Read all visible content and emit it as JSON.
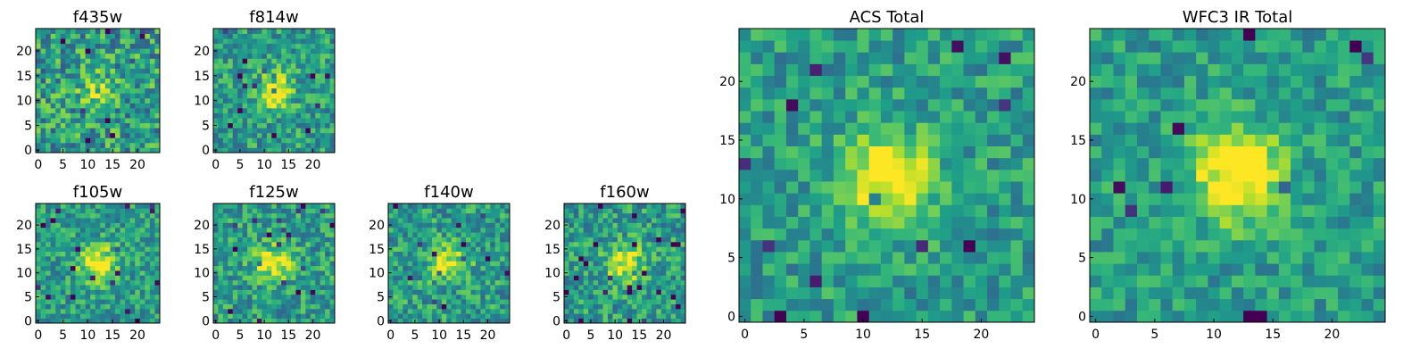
{
  "figure": {
    "colormap": "viridis",
    "grid": false,
    "legend": "none"
  },
  "chart_data": [
    {
      "type": "heatmap",
      "title": "f435w",
      "seed": 11,
      "blob": 0.25,
      "noise": 0.75,
      "grid_size": 25,
      "xlim": [
        0,
        25
      ],
      "ylim": [
        0,
        25
      ],
      "x_ticks": [
        "0",
        "5",
        "10",
        "15",
        "20"
      ],
      "y_ticks": [
        "0",
        "5",
        "10",
        "15",
        "20"
      ]
    },
    {
      "type": "heatmap",
      "title": "f814w",
      "seed": 23,
      "blob": 0.45,
      "noise": 0.6,
      "grid_size": 25,
      "xlim": [
        0,
        25
      ],
      "ylim": [
        0,
        25
      ],
      "x_ticks": [
        "0",
        "5",
        "10",
        "15",
        "20"
      ],
      "y_ticks": [
        "0",
        "5",
        "10",
        "15",
        "20"
      ]
    },
    {
      "type": "heatmap",
      "title": "f105w",
      "seed": 37,
      "blob": 0.5,
      "noise": 0.55,
      "grid_size": 25,
      "xlim": [
        0,
        25
      ],
      "ylim": [
        0,
        25
      ],
      "x_ticks": [
        "0",
        "5",
        "10",
        "15",
        "20"
      ],
      "y_ticks": [
        "0",
        "5",
        "10",
        "15",
        "20"
      ]
    },
    {
      "type": "heatmap",
      "title": "f125w",
      "seed": 41,
      "blob": 0.45,
      "noise": 0.6,
      "grid_size": 25,
      "xlim": [
        0,
        25
      ],
      "ylim": [
        0,
        25
      ],
      "x_ticks": [
        "0",
        "5",
        "10",
        "15",
        "20"
      ],
      "y_ticks": [
        "0",
        "5",
        "10",
        "15",
        "20"
      ]
    },
    {
      "type": "heatmap",
      "title": "f140w",
      "seed": 53,
      "blob": 0.4,
      "noise": 0.6,
      "grid_size": 25,
      "xlim": [
        0,
        25
      ],
      "ylim": [
        0,
        25
      ],
      "x_ticks": [
        "0",
        "5",
        "10",
        "15",
        "20"
      ],
      "y_ticks": [
        "0",
        "5",
        "10",
        "15",
        "20"
      ]
    },
    {
      "type": "heatmap",
      "title": "f160w",
      "seed": 67,
      "blob": 0.45,
      "noise": 0.6,
      "grid_size": 25,
      "xlim": [
        0,
        25
      ],
      "ylim": [
        0,
        25
      ],
      "x_ticks": [
        "0",
        "5",
        "10",
        "15",
        "20"
      ],
      "y_ticks": [
        "0",
        "5",
        "10",
        "15",
        "20"
      ]
    },
    {
      "type": "heatmap",
      "title": "ACS Total",
      "seed": 79,
      "blob": 0.55,
      "noise": 0.5,
      "grid_size": 25,
      "xlim": [
        0,
        25
      ],
      "ylim": [
        0,
        25
      ],
      "x_ticks": [
        "0",
        "5",
        "10",
        "15",
        "20"
      ],
      "y_ticks": [
        "0",
        "5",
        "10",
        "15",
        "20"
      ]
    },
    {
      "type": "heatmap",
      "title": "WFC3 IR Total",
      "seed": 97,
      "blob": 0.6,
      "noise": 0.45,
      "grid_size": 25,
      "xlim": [
        0,
        25
      ],
      "ylim": [
        0,
        25
      ],
      "x_ticks": [
        "0",
        "5",
        "10",
        "15",
        "20"
      ],
      "y_ticks": [
        "0",
        "5",
        "10",
        "15",
        "20"
      ]
    }
  ]
}
